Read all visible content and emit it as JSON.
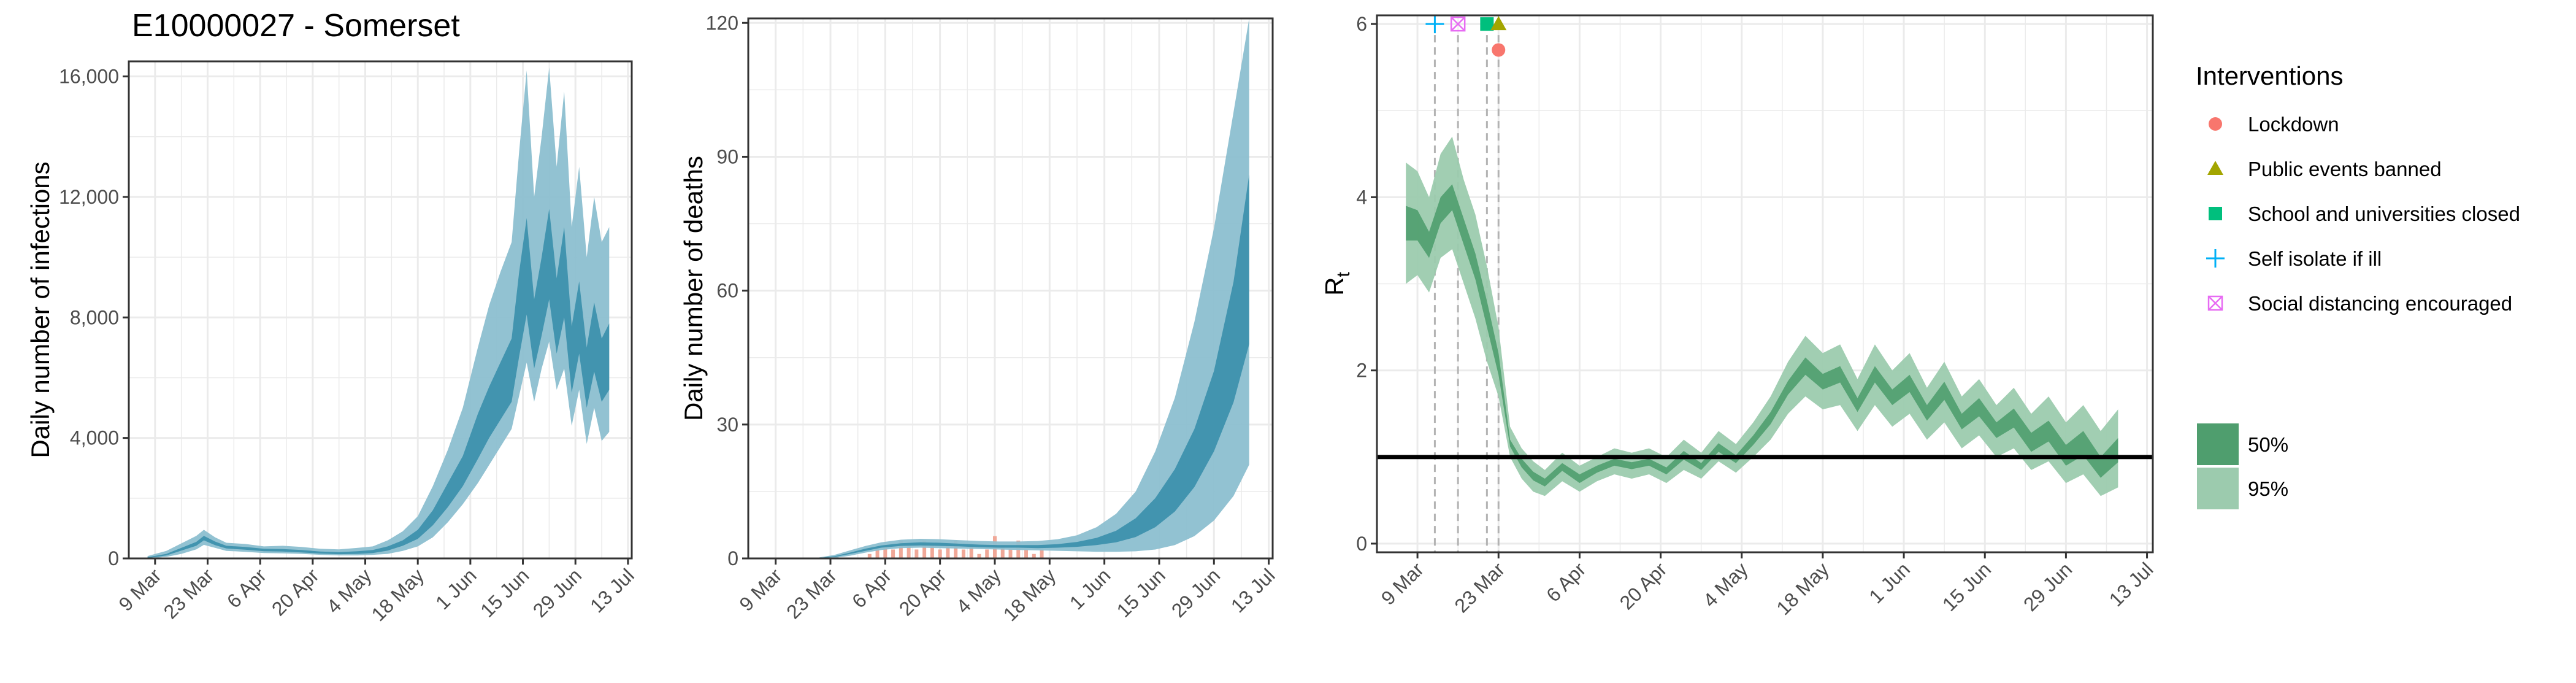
{
  "page_title": "E10000027 - Somerset",
  "colors": {
    "infections_outer": "#8cbfd0",
    "infections_inner": "#3a8fab",
    "deaths_outer": "#8cbfd0",
    "deaths_inner": "#3a8fab",
    "observed_deaths": "#f0a898",
    "rt_outer": "#9ccbae",
    "rt_inner": "#4f9e6e",
    "threshold": "#000000",
    "vline": "#b3b3b3",
    "grid": "#ebebeb",
    "lockdown": "#F8766D",
    "public_events": "#A3A500",
    "schools": "#00BF7D",
    "self_isolate": "#00B0F6",
    "social_distancing": "#E76BF3"
  },
  "chart_data": [
    {
      "type": "area",
      "ylabel": "Daily number of infections",
      "xlim": [
        "2020-03-02",
        "2020-07-14"
      ],
      "ylim": [
        0,
        16500
      ],
      "yticks": [
        0,
        4000,
        8000,
        12000,
        16000
      ],
      "ytick_labels": [
        "0",
        "4,000",
        "8,000",
        "12,000",
        "16,000"
      ],
      "xtick_labels": [
        "9 Mar",
        "23 Mar",
        "6 Apr",
        "20 Apr",
        "4 May",
        "18 May",
        "1 Jun",
        "15 Jun",
        "29 Jun",
        "13 Jul"
      ],
      "series": [
        {
          "interval": "95%",
          "x": [
            "2020-03-07",
            "2020-03-12",
            "2020-03-16",
            "2020-03-20",
            "2020-03-22",
            "2020-03-25",
            "2020-03-28",
            "2020-04-02",
            "2020-04-07",
            "2020-04-12",
            "2020-04-17",
            "2020-04-22",
            "2020-04-27",
            "2020-05-02",
            "2020-05-06",
            "2020-05-10",
            "2020-05-14",
            "2020-05-18",
            "2020-05-22",
            "2020-05-26",
            "2020-05-30",
            "2020-06-03",
            "2020-06-06",
            "2020-06-09",
            "2020-06-12",
            "2020-06-14",
            "2020-06-16",
            "2020-06-18",
            "2020-06-20",
            "2020-06-22",
            "2020-06-24",
            "2020-06-26",
            "2020-06-28",
            "2020-06-30",
            "2020-07-02",
            "2020-07-04",
            "2020-07-06",
            "2020-07-08"
          ],
          "upper": [
            80,
            250,
            500,
            750,
            950,
            700,
            520,
            480,
            400,
            420,
            380,
            320,
            300,
            350,
            400,
            600,
            900,
            1400,
            2400,
            3600,
            5000,
            7000,
            8400,
            9500,
            10500,
            13500,
            16200,
            12000,
            14000,
            16300,
            13000,
            15500,
            11000,
            13000,
            10000,
            12000,
            10500,
            11000
          ],
          "lower": [
            0,
            50,
            150,
            300,
            450,
            350,
            250,
            220,
            180,
            170,
            150,
            120,
            100,
            100,
            120,
            150,
            250,
            400,
            700,
            1200,
            1800,
            2500,
            3100,
            3700,
            4300,
            5400,
            6500,
            5200,
            6300,
            7200,
            5600,
            6300,
            4400,
            5600,
            3800,
            5000,
            3900,
            4200
          ]
        },
        {
          "interval": "50%",
          "x": [
            "2020-03-07",
            "2020-03-12",
            "2020-03-16",
            "2020-03-20",
            "2020-03-22",
            "2020-03-25",
            "2020-03-28",
            "2020-04-02",
            "2020-04-07",
            "2020-04-12",
            "2020-04-17",
            "2020-04-22",
            "2020-04-27",
            "2020-05-02",
            "2020-05-06",
            "2020-05-10",
            "2020-05-14",
            "2020-05-18",
            "2020-05-22",
            "2020-05-26",
            "2020-05-30",
            "2020-06-03",
            "2020-06-06",
            "2020-06-09",
            "2020-06-12",
            "2020-06-14",
            "2020-06-16",
            "2020-06-18",
            "2020-06-20",
            "2020-06-22",
            "2020-06-24",
            "2020-06-26",
            "2020-06-28",
            "2020-06-30",
            "2020-07-02",
            "2020-07-04",
            "2020-07-06",
            "2020-07-08"
          ],
          "upper": [
            40,
            150,
            350,
            550,
            750,
            560,
            420,
            380,
            320,
            310,
            280,
            230,
            210,
            240,
            280,
            400,
            600,
            950,
            1600,
            2500,
            3400,
            4800,
            5700,
            6500,
            7300,
            9500,
            11300,
            8600,
            10000,
            11600,
            9300,
            11000,
            7700,
            9200,
            7000,
            8500,
            7300,
            7800
          ],
          "lower": [
            10,
            100,
            260,
            420,
            600,
            440,
            330,
            290,
            240,
            230,
            200,
            160,
            140,
            150,
            180,
            260,
            420,
            650,
            1100,
            1700,
            2400,
            3300,
            4000,
            4600,
            5200,
            6700,
            8100,
            6300,
            7400,
            8600,
            6800,
            8000,
            5500,
            6800,
            5000,
            6200,
            5200,
            5600
          ]
        }
      ]
    },
    {
      "type": "area",
      "ylabel": "Daily number of deaths",
      "xlim": [
        "2020-03-02",
        "2020-07-14"
      ],
      "ylim": [
        0,
        121
      ],
      "yticks": [
        0,
        30,
        60,
        90,
        120
      ],
      "ytick_labels": [
        "0",
        "30",
        "60",
        "90",
        "120"
      ],
      "xtick_labels": [
        "9 Mar",
        "23 Mar",
        "6 Apr",
        "20 Apr",
        "4 May",
        "18 May",
        "1 Jun",
        "15 Jun",
        "29 Jun",
        "13 Jul"
      ],
      "series": [
        {
          "interval": "95%",
          "x": [
            "2020-03-07",
            "2020-03-20",
            "2020-03-24",
            "2020-03-28",
            "2020-04-01",
            "2020-04-05",
            "2020-04-10",
            "2020-04-15",
            "2020-04-20",
            "2020-04-25",
            "2020-04-30",
            "2020-05-05",
            "2020-05-10",
            "2020-05-15",
            "2020-05-20",
            "2020-05-25",
            "2020-05-30",
            "2020-06-04",
            "2020-06-09",
            "2020-06-14",
            "2020-06-19",
            "2020-06-24",
            "2020-06-29",
            "2020-07-04",
            "2020-07-08"
          ],
          "upper": [
            0,
            0.2,
            0.8,
            1.8,
            2.8,
            3.6,
            4.2,
            4.4,
            4.3,
            4.1,
            3.9,
            3.8,
            3.8,
            3.9,
            4.3,
            5.2,
            7,
            10,
            15,
            24,
            36,
            53,
            74,
            100,
            121
          ],
          "lower": [
            0,
            0,
            0.1,
            0.6,
            1.3,
            1.9,
            2.3,
            2.4,
            2.3,
            2.2,
            2.1,
            2,
            1.9,
            1.8,
            1.7,
            1.6,
            1.5,
            1.5,
            1.6,
            2,
            3,
            5,
            8.5,
            14,
            21
          ]
        },
        {
          "interval": "50%",
          "x": [
            "2020-03-07",
            "2020-03-20",
            "2020-03-24",
            "2020-03-28",
            "2020-04-01",
            "2020-04-05",
            "2020-04-10",
            "2020-04-15",
            "2020-04-20",
            "2020-04-25",
            "2020-04-30",
            "2020-05-05",
            "2020-05-10",
            "2020-05-15",
            "2020-05-20",
            "2020-05-25",
            "2020-05-30",
            "2020-06-04",
            "2020-06-09",
            "2020-06-14",
            "2020-06-19",
            "2020-06-24",
            "2020-06-29",
            "2020-07-04",
            "2020-07-08"
          ],
          "upper": [
            0,
            0.1,
            0.5,
            1.3,
            2.2,
            2.9,
            3.4,
            3.6,
            3.5,
            3.3,
            3.1,
            3,
            3,
            3,
            3.2,
            3.7,
            4.6,
            6.2,
            9,
            13.5,
            20,
            29,
            42,
            62,
            86
          ],
          "lower": [
            0,
            0.05,
            0.3,
            1,
            1.7,
            2.4,
            2.8,
            2.9,
            2.8,
            2.7,
            2.5,
            2.4,
            2.4,
            2.3,
            2.4,
            2.6,
            3,
            3.6,
            4.8,
            7,
            10.5,
            16,
            24,
            35,
            48
          ]
        }
      ],
      "observed_deaths": {
        "x": [
          "2020-04-02",
          "2020-04-04",
          "2020-04-06",
          "2020-04-08",
          "2020-04-10",
          "2020-04-12",
          "2020-04-14",
          "2020-04-16",
          "2020-04-18",
          "2020-04-20",
          "2020-04-22",
          "2020-04-24",
          "2020-04-26",
          "2020-04-28",
          "2020-04-30",
          "2020-05-02",
          "2020-05-04",
          "2020-05-06",
          "2020-05-08",
          "2020-05-10",
          "2020-05-12",
          "2020-05-14",
          "2020-05-16"
        ],
        "y": [
          1,
          2,
          3,
          2,
          4,
          3,
          2,
          4,
          3,
          2,
          3,
          4,
          2,
          3,
          1,
          2,
          5,
          3,
          2,
          4,
          2,
          1,
          2
        ]
      }
    },
    {
      "type": "area",
      "ylabel": "R",
      "ylabel_subscript": "t",
      "xlim": [
        "2020-03-02",
        "2020-07-14"
      ],
      "ylim": [
        -0.1,
        6.1
      ],
      "yticks": [
        0,
        2,
        4,
        6
      ],
      "ytick_labels": [
        "0",
        "2",
        "4",
        "6"
      ],
      "xtick_labels": [
        "9 Mar",
        "23 Mar",
        "6 Apr",
        "20 Apr",
        "4 May",
        "18 May",
        "1 Jun",
        "15 Jun",
        "29 Jun",
        "13 Jul"
      ],
      "threshold": 1,
      "series": [
        {
          "interval": "95%",
          "x": [
            "2020-03-07",
            "2020-03-09",
            "2020-03-11",
            "2020-03-13",
            "2020-03-15",
            "2020-03-17",
            "2020-03-19",
            "2020-03-21",
            "2020-03-23",
            "2020-03-25",
            "2020-03-27",
            "2020-03-29",
            "2020-03-31",
            "2020-04-03",
            "2020-04-06",
            "2020-04-09",
            "2020-04-12",
            "2020-04-15",
            "2020-04-18",
            "2020-04-21",
            "2020-04-24",
            "2020-04-27",
            "2020-04-30",
            "2020-05-03",
            "2020-05-06",
            "2020-05-09",
            "2020-05-12",
            "2020-05-15",
            "2020-05-18",
            "2020-05-21",
            "2020-05-24",
            "2020-05-27",
            "2020-05-30",
            "2020-06-02",
            "2020-06-05",
            "2020-06-08",
            "2020-06-11",
            "2020-06-14",
            "2020-06-17",
            "2020-06-20",
            "2020-06-23",
            "2020-06-26",
            "2020-06-29",
            "2020-07-02",
            "2020-07-05",
            "2020-07-08"
          ],
          "upper": [
            4.4,
            4.3,
            4.0,
            4.5,
            4.7,
            4.2,
            3.8,
            3.2,
            2.5,
            1.35,
            1.1,
            0.95,
            0.85,
            1.05,
            0.9,
            1.0,
            1.1,
            1.05,
            1.1,
            1.0,
            1.2,
            1.05,
            1.3,
            1.15,
            1.4,
            1.7,
            2.1,
            2.4,
            2.2,
            2.3,
            1.9,
            2.3,
            2.0,
            2.2,
            1.8,
            2.1,
            1.7,
            1.9,
            1.6,
            1.8,
            1.5,
            1.7,
            1.4,
            1.6,
            1.3,
            1.55
          ],
          "lower": [
            3.0,
            3.1,
            2.9,
            3.3,
            3.4,
            3.0,
            2.6,
            2.1,
            1.7,
            1.0,
            0.75,
            0.6,
            0.55,
            0.72,
            0.6,
            0.72,
            0.8,
            0.75,
            0.8,
            0.7,
            0.85,
            0.75,
            0.95,
            0.82,
            1.0,
            1.2,
            1.5,
            1.7,
            1.55,
            1.6,
            1.3,
            1.6,
            1.35,
            1.5,
            1.2,
            1.4,
            1.1,
            1.25,
            1.0,
            1.1,
            0.85,
            0.95,
            0.7,
            0.8,
            0.55,
            0.65
          ]
        },
        {
          "interval": "50%",
          "x": [
            "2020-03-07",
            "2020-03-09",
            "2020-03-11",
            "2020-03-13",
            "2020-03-15",
            "2020-03-17",
            "2020-03-19",
            "2020-03-21",
            "2020-03-23",
            "2020-03-25",
            "2020-03-27",
            "2020-03-29",
            "2020-03-31",
            "2020-04-03",
            "2020-04-06",
            "2020-04-09",
            "2020-04-12",
            "2020-04-15",
            "2020-04-18",
            "2020-04-21",
            "2020-04-24",
            "2020-04-27",
            "2020-04-30",
            "2020-05-03",
            "2020-05-06",
            "2020-05-09",
            "2020-05-12",
            "2020-05-15",
            "2020-05-18",
            "2020-05-21",
            "2020-05-24",
            "2020-05-27",
            "2020-05-30",
            "2020-06-02",
            "2020-06-05",
            "2020-06-08",
            "2020-06-11",
            "2020-06-14",
            "2020-06-17",
            "2020-06-20",
            "2020-06-23",
            "2020-06-26",
            "2020-06-29",
            "2020-07-02",
            "2020-07-05",
            "2020-07-08"
          ],
          "upper": [
            3.9,
            3.85,
            3.6,
            4.0,
            4.15,
            3.75,
            3.35,
            2.8,
            2.2,
            1.2,
            0.98,
            0.83,
            0.75,
            0.93,
            0.8,
            0.9,
            0.98,
            0.94,
            0.98,
            0.88,
            1.07,
            0.93,
            1.16,
            1.02,
            1.25,
            1.52,
            1.88,
            2.15,
            1.96,
            2.05,
            1.68,
            2.05,
            1.78,
            1.95,
            1.6,
            1.87,
            1.5,
            1.68,
            1.4,
            1.56,
            1.28,
            1.42,
            1.14,
            1.3,
            1.0,
            1.22
          ],
          "lower": [
            3.5,
            3.5,
            3.3,
            3.7,
            3.85,
            3.45,
            3.05,
            2.5,
            1.95,
            1.12,
            0.88,
            0.73,
            0.66,
            0.84,
            0.7,
            0.82,
            0.9,
            0.86,
            0.9,
            0.8,
            0.97,
            0.85,
            1.06,
            0.93,
            1.14,
            1.38,
            1.72,
            1.95,
            1.78,
            1.86,
            1.52,
            1.86,
            1.6,
            1.75,
            1.42,
            1.66,
            1.32,
            1.47,
            1.22,
            1.34,
            1.06,
            1.18,
            0.9,
            1.02,
            0.76,
            0.94
          ]
        }
      ],
      "interventions": [
        {
          "name": "Self isolate if ill",
          "date": "2020-03-12",
          "y": 6.0,
          "shape": "plus"
        },
        {
          "name": "Social distancing encouraged",
          "date": "2020-03-16",
          "y": 6.0,
          "shape": "boxx"
        },
        {
          "name": "School and universities closed",
          "date": "2020-03-21",
          "y": 6.0,
          "shape": "square"
        },
        {
          "name": "Public events banned",
          "date": "2020-03-23",
          "y": 6.0,
          "shape": "triangle"
        },
        {
          "name": "Lockdown",
          "date": "2020-03-23",
          "y": 5.7,
          "shape": "circle"
        }
      ]
    }
  ],
  "legend": {
    "title": "Interventions",
    "items": [
      {
        "label": "Lockdown",
        "shape": "circle",
        "color_key": "lockdown"
      },
      {
        "label": "Public events banned",
        "shape": "triangle",
        "color_key": "public_events"
      },
      {
        "label": "School and universities closed",
        "shape": "square",
        "color_key": "schools"
      },
      {
        "label": "Self isolate if ill",
        "shape": "plus",
        "color_key": "self_isolate"
      },
      {
        "label": "Social distancing encouraged",
        "shape": "boxx",
        "color_key": "social_distancing"
      }
    ],
    "intervals": [
      {
        "label": "50%",
        "color_key": "rt_inner"
      },
      {
        "label": "95%",
        "color_key": "rt_outer"
      }
    ]
  }
}
